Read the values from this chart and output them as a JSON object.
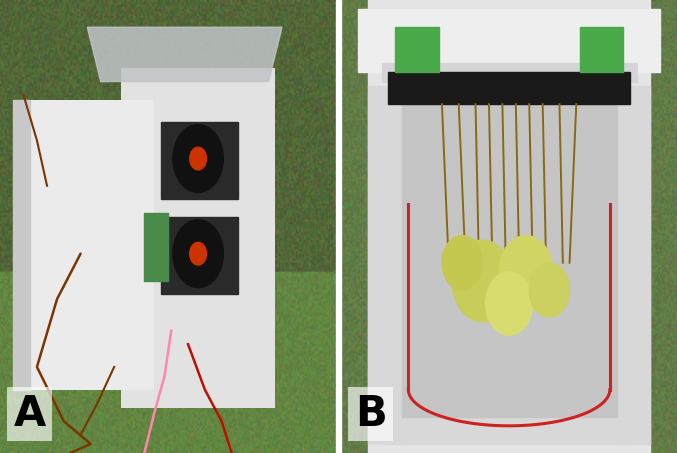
{
  "figure_width": 6.77,
  "figure_height": 4.53,
  "dpi": 100,
  "label_fontsize": 30,
  "label_fontweight": "bold",
  "label_color": "#000000",
  "label_bg_color": "white",
  "label_bg_alpha": 0.65,
  "background_color": "#ffffff",
  "divider_color": "#ffffff",
  "panel_labels": [
    "A",
    "B"
  ]
}
